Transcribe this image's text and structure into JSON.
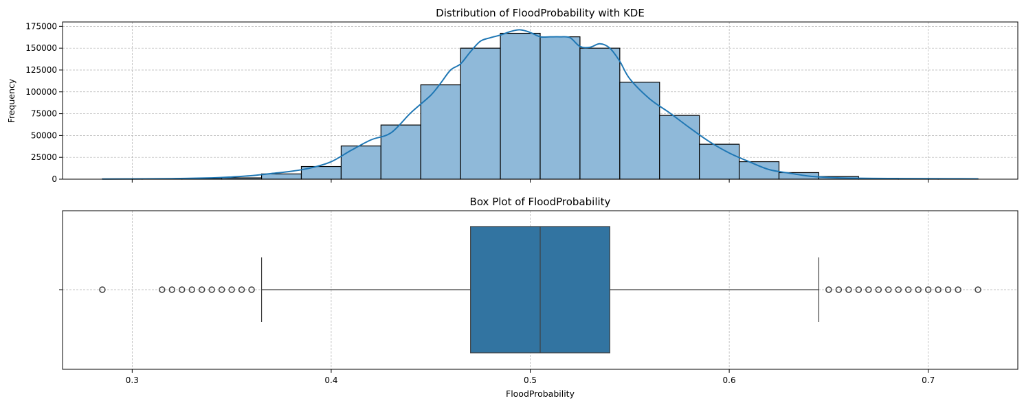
{
  "chart_data": [
    {
      "type": "histogram",
      "title": "Distribution of FloodProbability with KDE",
      "xlabel": "",
      "ylabel": "Frequency",
      "xlim": [
        0.265,
        0.745
      ],
      "ylim": [
        0,
        180000
      ],
      "yticks": [
        0,
        25000,
        50000,
        75000,
        100000,
        125000,
        150000,
        175000
      ],
      "grid": true,
      "bins": [
        {
          "x0": 0.285,
          "x1": 0.305,
          "value": 300
        },
        {
          "x0": 0.305,
          "x1": 0.325,
          "value": 300
        },
        {
          "x0": 0.325,
          "x1": 0.345,
          "value": 500
        },
        {
          "x0": 0.345,
          "x1": 0.365,
          "value": 1500
        },
        {
          "x0": 0.365,
          "x1": 0.385,
          "value": 6000
        },
        {
          "x0": 0.385,
          "x1": 0.405,
          "value": 14500
        },
        {
          "x0": 0.405,
          "x1": 0.425,
          "value": 38000
        },
        {
          "x0": 0.425,
          "x1": 0.445,
          "value": 62000
        },
        {
          "x0": 0.445,
          "x1": 0.465,
          "value": 108000
        },
        {
          "x0": 0.465,
          "x1": 0.485,
          "value": 150000
        },
        {
          "x0": 0.485,
          "x1": 0.505,
          "value": 167000
        },
        {
          "x0": 0.505,
          "x1": 0.525,
          "value": 163000
        },
        {
          "x0": 0.525,
          "x1": 0.545,
          "value": 150000
        },
        {
          "x0": 0.545,
          "x1": 0.565,
          "value": 111000
        },
        {
          "x0": 0.565,
          "x1": 0.585,
          "value": 73000
        },
        {
          "x0": 0.585,
          "x1": 0.605,
          "value": 40000
        },
        {
          "x0": 0.605,
          "x1": 0.625,
          "value": 20000
        },
        {
          "x0": 0.625,
          "x1": 0.645,
          "value": 7500
        },
        {
          "x0": 0.645,
          "x1": 0.665,
          "value": 3000
        },
        {
          "x0": 0.665,
          "x1": 0.685,
          "value": 1000
        },
        {
          "x0": 0.685,
          "x1": 0.705,
          "value": 600
        },
        {
          "x0": 0.705,
          "x1": 0.725,
          "value": 400
        }
      ],
      "kde": {
        "x": [
          0.285,
          0.3,
          0.32,
          0.34,
          0.35,
          0.36,
          0.37,
          0.38,
          0.39,
          0.4,
          0.41,
          0.42,
          0.43,
          0.44,
          0.45,
          0.455,
          0.46,
          0.465,
          0.47,
          0.475,
          0.48,
          0.485,
          0.49,
          0.495,
          0.5,
          0.505,
          0.51,
          0.515,
          0.52,
          0.525,
          0.53,
          0.535,
          0.54,
          0.545,
          0.55,
          0.56,
          0.57,
          0.58,
          0.59,
          0.6,
          0.61,
          0.62,
          0.63,
          0.64,
          0.65,
          0.66,
          0.68,
          0.7,
          0.725
        ],
        "y": [
          200,
          300,
          600,
          1500,
          2500,
          4000,
          6500,
          9000,
          13000,
          20000,
          33000,
          45000,
          53000,
          76000,
          96000,
          110000,
          125000,
          132000,
          146000,
          158000,
          162000,
          165000,
          169000,
          171000,
          168000,
          163000,
          163000,
          163000,
          162000,
          152000,
          151000,
          155000,
          150000,
          135000,
          115000,
          92000,
          76000,
          59000,
          43000,
          30000,
          20000,
          11000,
          7000,
          3500,
          2000,
          1200,
          800,
          600,
          400
        ]
      }
    },
    {
      "type": "box",
      "title": "Box Plot of FloodProbability",
      "xlabel": "FloodProbability",
      "xlim": [
        0.265,
        0.745
      ],
      "xticks": [
        0.3,
        0.4,
        0.5,
        0.6,
        0.7
      ],
      "grid": true,
      "q1": 0.47,
      "median": 0.505,
      "q3": 0.54,
      "whisker_low": 0.365,
      "whisker_high": 0.645,
      "outliers": [
        0.285,
        0.315,
        0.32,
        0.325,
        0.33,
        0.335,
        0.34,
        0.345,
        0.35,
        0.355,
        0.36,
        0.65,
        0.655,
        0.66,
        0.665,
        0.67,
        0.675,
        0.68,
        0.685,
        0.69,
        0.695,
        0.7,
        0.705,
        0.71,
        0.715,
        0.725
      ],
      "color": "#3274a1"
    }
  ]
}
